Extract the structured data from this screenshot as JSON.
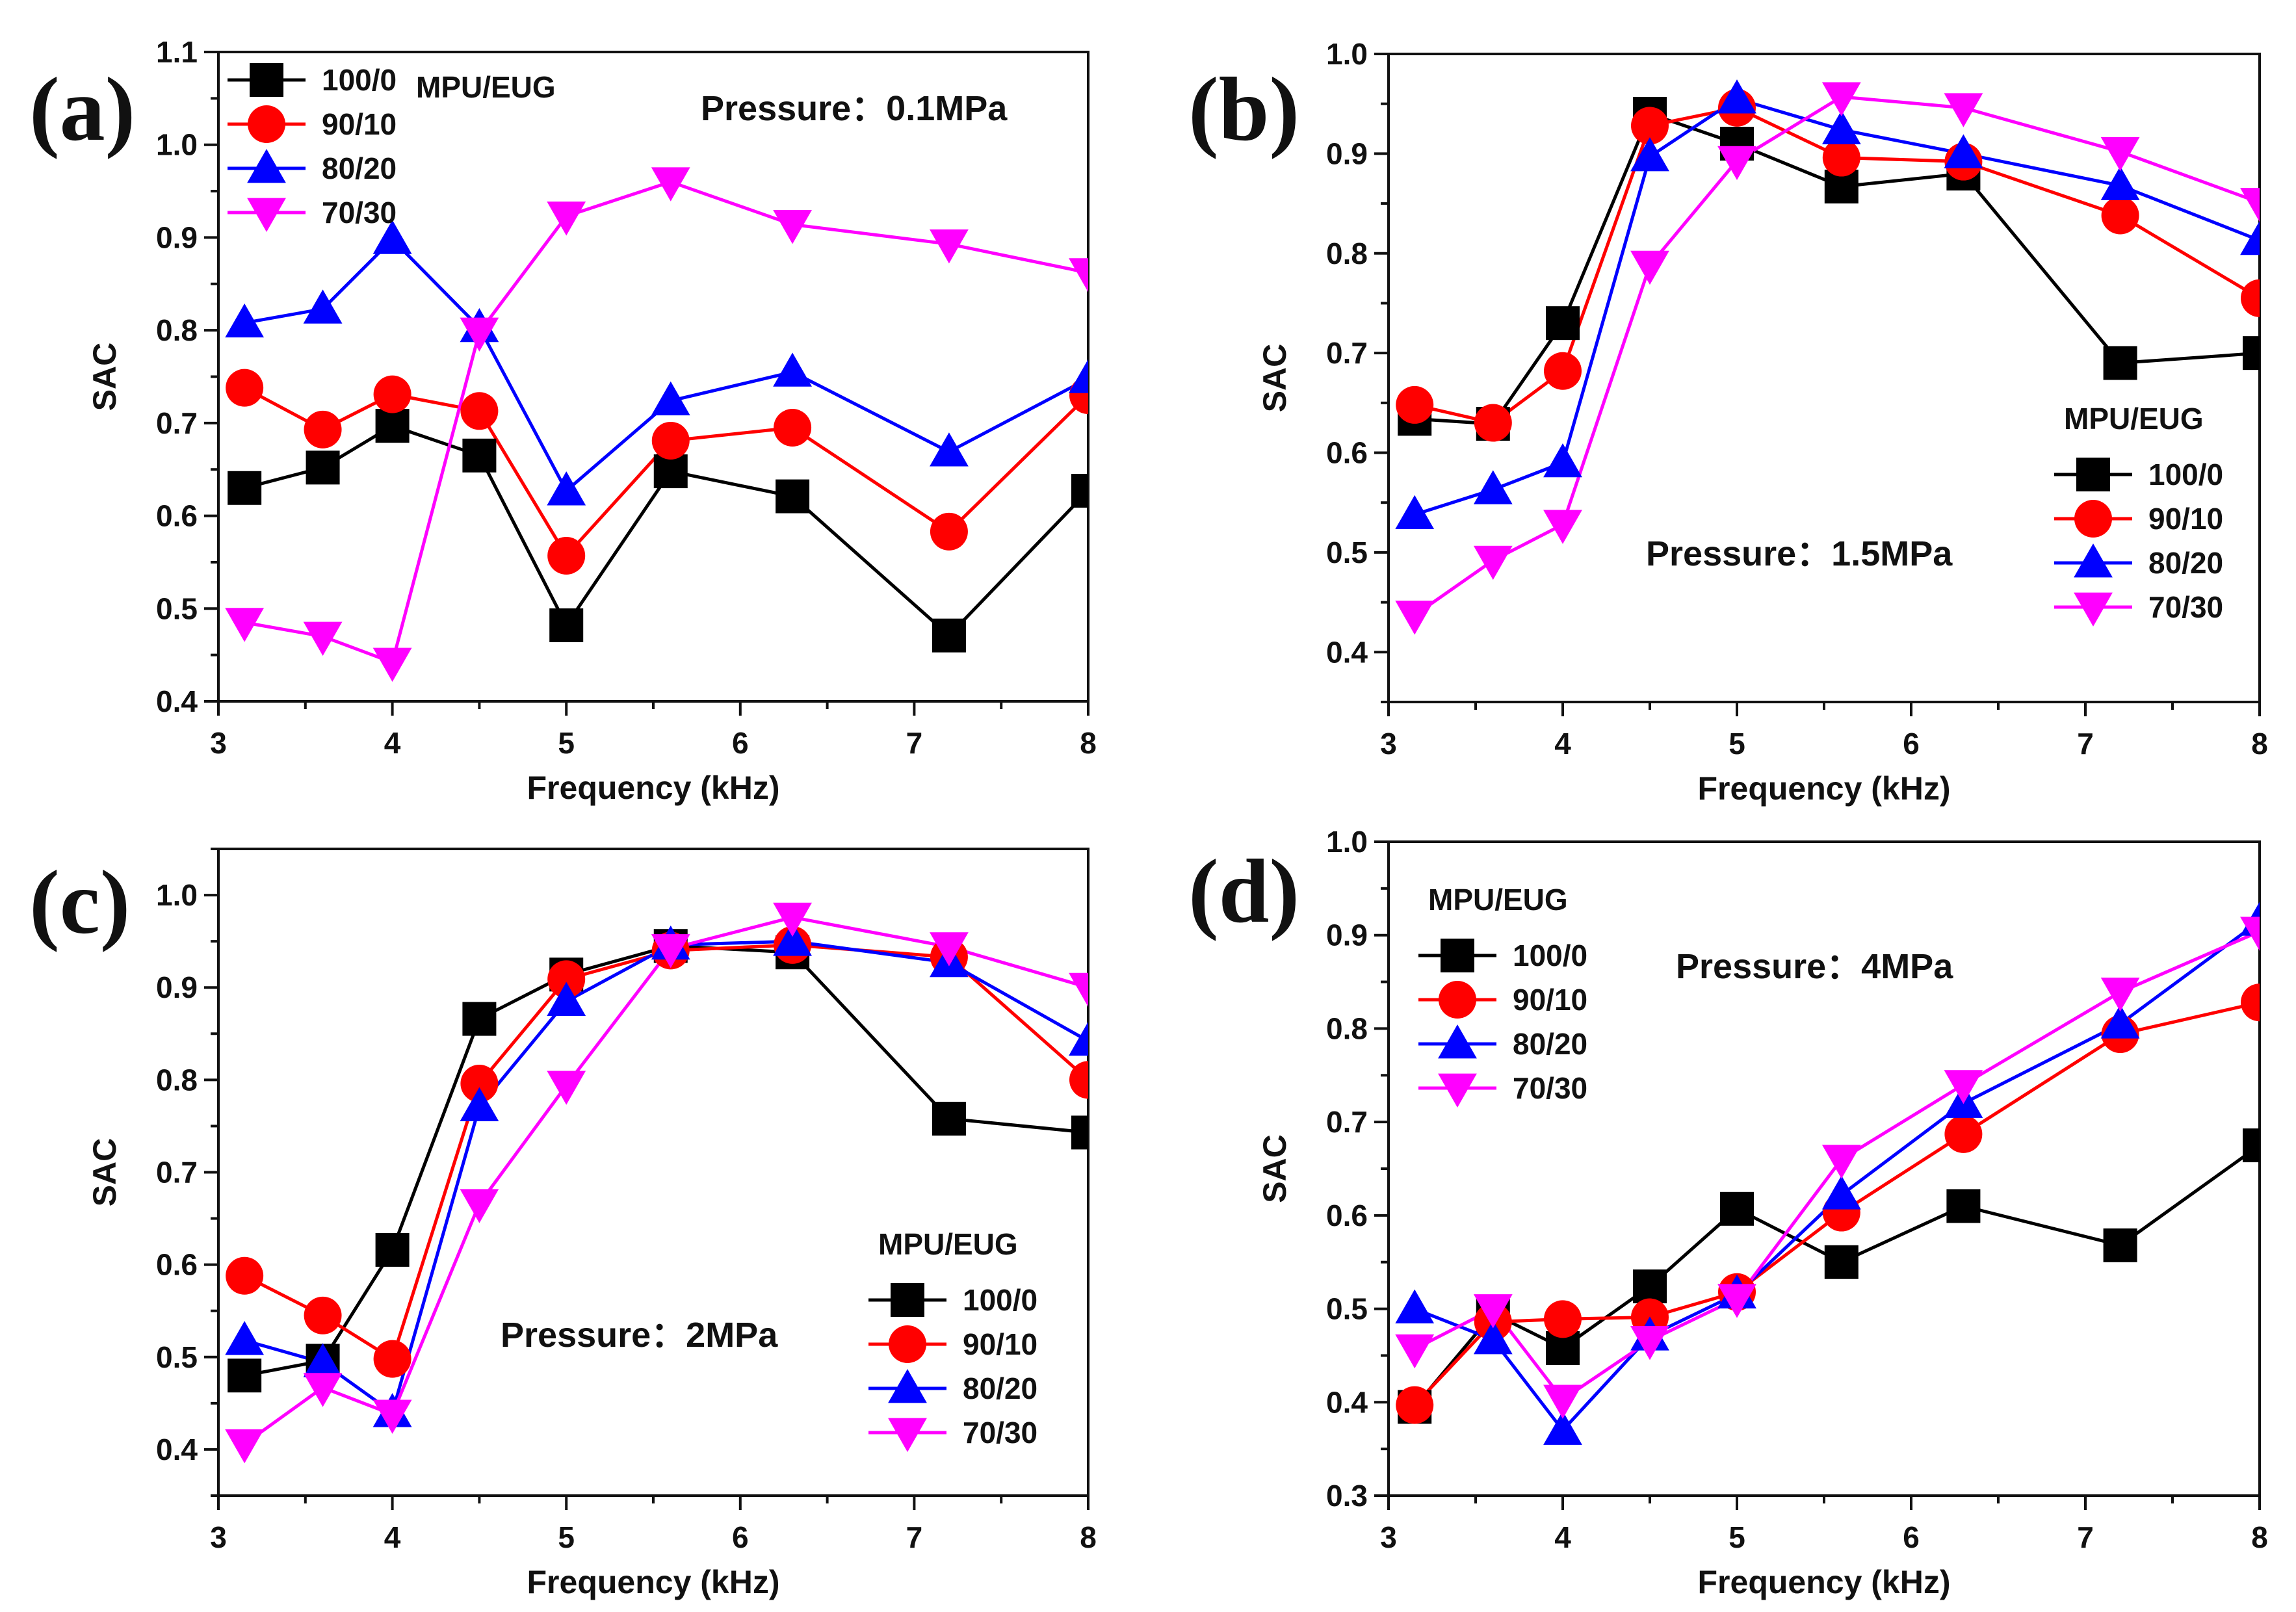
{
  "chart_data": [
    {
      "panel_id": "a",
      "panel_label": "(a)",
      "type": "line",
      "pressure_text": "Pressure：0.1MPa",
      "xlabel": "Frequency (kHz)",
      "ylabel": "SAC",
      "xlim": [
        3,
        8
      ],
      "ylim": [
        0.4,
        1.1
      ],
      "xticks": [
        "3",
        "4",
        "5",
        "6",
        "7",
        "8"
      ],
      "yticks": [
        "0.4",
        "0.5",
        "0.6",
        "0.7",
        "0.8",
        "0.9",
        "1.0",
        "1.1"
      ],
      "legend_title": "MPU/EUG",
      "legend_position": "top-left",
      "x": [
        3.15,
        3.6,
        4.0,
        4.5,
        5.0,
        5.6,
        6.3,
        7.2,
        8.0
      ],
      "series": [
        {
          "name": "100/0",
          "color": "#000000",
          "marker": "square",
          "values": [
            0.63,
            0.652,
            0.697,
            0.665,
            0.482,
            0.648,
            0.621,
            0.471,
            0.627
          ]
        },
        {
          "name": "90/10",
          "color": "#ff0000",
          "marker": "circle",
          "values": [
            0.738,
            0.693,
            0.731,
            0.713,
            0.557,
            0.681,
            0.695,
            0.583,
            0.73
          ]
        },
        {
          "name": "80/20",
          "color": "#0000ff",
          "marker": "triangle-up",
          "values": [
            0.808,
            0.823,
            0.898,
            0.803,
            0.627,
            0.724,
            0.755,
            0.669,
            0.748
          ]
        },
        {
          "name": "70/30",
          "color": "#ff00ff",
          "marker": "triangle-down",
          "values": [
            0.485,
            0.47,
            0.442,
            0.798,
            0.923,
            0.96,
            0.914,
            0.893,
            0.862
          ]
        }
      ]
    },
    {
      "panel_id": "b",
      "panel_label": "(b)",
      "type": "line",
      "pressure_text": "Pressure：1.5MPa",
      "xlabel": "Frequency (kHz)",
      "ylabel": "SAC",
      "xlim": [
        3,
        8
      ],
      "ylim": [
        0.35,
        1.0
      ],
      "xticks": [
        "3",
        "4",
        "5",
        "6",
        "7",
        "8"
      ],
      "yticks": [
        "0.4",
        "0.5",
        "0.6",
        "0.7",
        "0.8",
        "0.9",
        "1.0"
      ],
      "legend_title": "MPU/EUG",
      "legend_position": "bottom-right",
      "x": [
        3.15,
        3.6,
        4.0,
        4.5,
        5.0,
        5.6,
        6.3,
        7.2,
        8.0
      ],
      "series": [
        {
          "name": "100/0",
          "color": "#000000",
          "marker": "square",
          "values": [
            0.634,
            0.629,
            0.73,
            0.94,
            0.91,
            0.867,
            0.88,
            0.69,
            0.7
          ]
        },
        {
          "name": "90/10",
          "color": "#ff0000",
          "marker": "circle",
          "values": [
            0.648,
            0.63,
            0.682,
            0.928,
            0.946,
            0.896,
            0.892,
            0.838,
            0.755
          ]
        },
        {
          "name": "80/20",
          "color": "#0000ff",
          "marker": "triangle-up",
          "values": [
            0.538,
            0.563,
            0.59,
            0.897,
            0.955,
            0.924,
            0.9,
            0.868,
            0.813
          ]
        },
        {
          "name": "70/30",
          "color": "#ff00ff",
          "marker": "triangle-down",
          "values": [
            0.437,
            0.492,
            0.528,
            0.788,
            0.893,
            0.957,
            0.946,
            0.902,
            0.851
          ]
        }
      ]
    },
    {
      "panel_id": "c",
      "panel_label": "(c)",
      "type": "line",
      "pressure_text": "Pressure：2MPa",
      "xlabel": "Frequency (kHz)",
      "ylabel": "SAC",
      "xlim": [
        3,
        8
      ],
      "ylim": [
        0.35,
        1.05
      ],
      "xticks": [
        "3",
        "4",
        "5",
        "6",
        "7",
        "8"
      ],
      "yticks": [
        "0.4",
        "0.5",
        "0.6",
        "0.7",
        "0.8",
        "0.9",
        "1.0"
      ],
      "legend_title": "MPU/EUG",
      "legend_position": "bottom-right",
      "x": [
        3.15,
        3.6,
        4.0,
        4.5,
        5.0,
        5.6,
        6.3,
        7.2,
        8.0
      ],
      "series": [
        {
          "name": "100/0",
          "color": "#000000",
          "marker": "square",
          "values": [
            0.48,
            0.496,
            0.616,
            0.866,
            0.914,
            0.945,
            0.938,
            0.758,
            0.743
          ]
        },
        {
          "name": "90/10",
          "color": "#ff0000",
          "marker": "circle",
          "values": [
            0.588,
            0.545,
            0.498,
            0.796,
            0.909,
            0.94,
            0.946,
            0.933,
            0.8
          ]
        },
        {
          "name": "80/20",
          "color": "#0000ff",
          "marker": "triangle-up",
          "values": [
            0.518,
            0.494,
            0.44,
            0.771,
            0.885,
            0.946,
            0.95,
            0.927,
            0.842
          ]
        },
        {
          "name": "70/30",
          "color": "#ff00ff",
          "marker": "triangle-down",
          "values": [
            0.406,
            0.467,
            0.438,
            0.666,
            0.794,
            0.942,
            0.976,
            0.944,
            0.9
          ]
        }
      ]
    },
    {
      "panel_id": "d",
      "panel_label": "(d)",
      "type": "line",
      "pressure_text": "Pressure：4MPa",
      "xlabel": "Frequency (kHz)",
      "ylabel": "SAC",
      "xlim": [
        3,
        8
      ],
      "ylim": [
        0.3,
        1.0
      ],
      "xticks": [
        "3",
        "4",
        "5",
        "6",
        "7",
        "8"
      ],
      "yticks": [
        "0.3",
        "0.4",
        "0.5",
        "0.6",
        "0.7",
        "0.8",
        "0.9",
        "1.0"
      ],
      "legend_title": "MPU/EUG",
      "legend_position": "top-left",
      "x": [
        3.15,
        3.6,
        4.0,
        4.5,
        5.0,
        5.6,
        6.3,
        7.2,
        8.0
      ],
      "series": [
        {
          "name": "100/0",
          "color": "#000000",
          "marker": "square",
          "values": [
            0.395,
            0.495,
            0.458,
            0.524,
            0.607,
            0.55,
            0.61,
            0.568,
            0.675
          ]
        },
        {
          "name": "90/10",
          "color": "#ff0000",
          "marker": "circle",
          "values": [
            0.397,
            0.486,
            0.489,
            0.491,
            0.518,
            0.603,
            0.687,
            0.794,
            0.828
          ]
        },
        {
          "name": "80/20",
          "color": "#0000ff",
          "marker": "triangle-up",
          "values": [
            0.5,
            0.467,
            0.37,
            0.471,
            0.516,
            0.622,
            0.72,
            0.805,
            0.915
          ]
        },
        {
          "name": "70/30",
          "color": "#ff00ff",
          "marker": "triangle-down",
          "values": [
            0.457,
            0.5,
            0.403,
            0.466,
            0.511,
            0.66,
            0.74,
            0.839,
            0.904
          ]
        }
      ]
    }
  ]
}
